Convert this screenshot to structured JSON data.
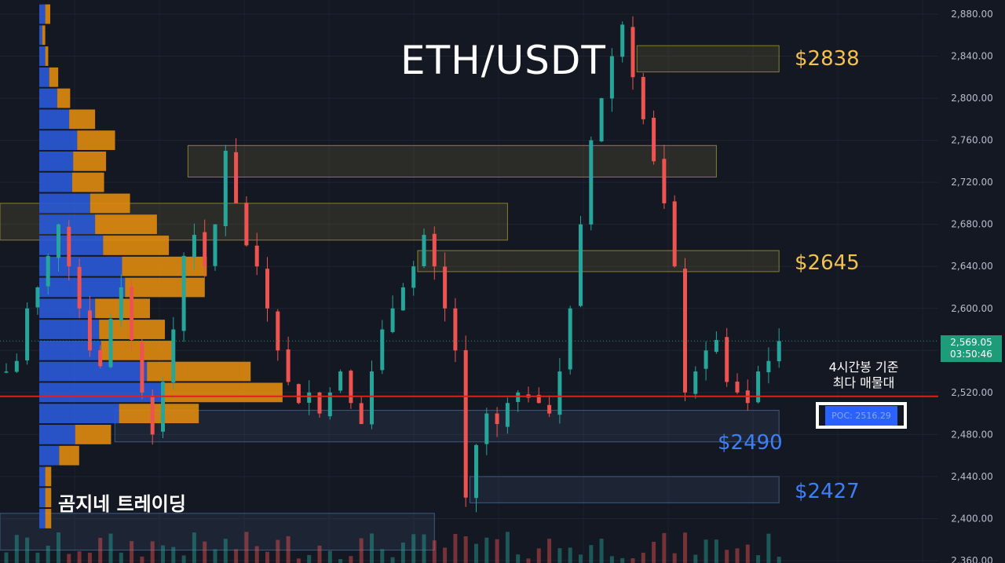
{
  "title": "ETH/USDT",
  "watermark": "곰지네 트레이딩",
  "price_labels": [
    {
      "text": "$2838",
      "color": "gold",
      "price": 2838
    },
    {
      "text": "$2645",
      "color": "gold",
      "price": 2645
    },
    {
      "text": "$2490",
      "color": "blue",
      "price": 2490
    },
    {
      "text": "$2427",
      "color": "blue",
      "price": 2427
    }
  ],
  "poc_note": {
    "line1": "4시간봉 기준",
    "line2": "최다 매물대"
  },
  "poc_label": "POC: 2516.29",
  "last_price": {
    "price": "2,569.05",
    "countdown": "03:50:46"
  },
  "colors": {
    "background": "#141823",
    "up": "#26a69a",
    "down": "#ef5350",
    "gold": "#f2c14e",
    "blue": "#3d7ff5",
    "poc_line": "#e01e1e"
  },
  "chart_data": {
    "type": "candlestick",
    "title": "ETH/USDT",
    "ylim": [
      2360,
      2890
    ],
    "y_ticks": [
      {
        "value": 2880,
        "label": "2,880.00"
      },
      {
        "value": 2840,
        "label": "2,840.00"
      },
      {
        "value": 2800,
        "label": "2,800.00"
      },
      {
        "value": 2760,
        "label": "2,760.00"
      },
      {
        "value": 2720,
        "label": "2,720.00"
      },
      {
        "value": 2680,
        "label": "2,680.00"
      },
      {
        "value": 2640,
        "label": "2,640.00"
      },
      {
        "value": 2600,
        "label": "2,600.00"
      },
      {
        "value": 2560,
        "label": "2,560.00"
      },
      {
        "value": 2520,
        "label": "2,520.00"
      },
      {
        "value": 2480,
        "label": "2,480.00"
      },
      {
        "value": 2440,
        "label": "2,440.00"
      },
      {
        "value": 2400,
        "label": "2,400.00"
      },
      {
        "value": 2360,
        "label": "2,360.00"
      }
    ],
    "poc": 2516.29,
    "last_price": 2569.05,
    "close_path": [
      2540,
      2550,
      2600,
      2620,
      2650,
      2680,
      2640,
      2600,
      2560,
      2545,
      2590,
      2620,
      2570,
      2520,
      2480,
      2530,
      2580,
      2650,
      2670,
      2640,
      2680,
      2750,
      2700,
      2660,
      2640,
      2600,
      2560,
      2530,
      2510,
      2520,
      2500,
      2520,
      2540,
      2510,
      2490,
      2540,
      2580,
      2600,
      2620,
      2640,
      2670,
      2640,
      2600,
      2560,
      2420,
      2470,
      2500,
      2490,
      2510,
      2520,
      2515,
      2510,
      2500,
      2540,
      2600,
      2680,
      2760,
      2800,
      2840,
      2870,
      2820,
      2780,
      2740,
      2700,
      2640,
      2520,
      2540,
      2560,
      2570,
      2530,
      2520,
      2510,
      2540,
      2550,
      2569
    ],
    "volume_profile": [
      {
        "price_low": 2870,
        "price_high": 2890,
        "up": 6,
        "down": 5
      },
      {
        "price_low": 2850,
        "price_high": 2870,
        "up": 3,
        "down": 3
      },
      {
        "price_low": 2830,
        "price_high": 2850,
        "up": 6,
        "down": 3
      },
      {
        "price_low": 2810,
        "price_high": 2830,
        "up": 10,
        "down": 9
      },
      {
        "price_low": 2790,
        "price_high": 2810,
        "up": 18,
        "down": 13
      },
      {
        "price_low": 2770,
        "price_high": 2790,
        "up": 30,
        "down": 26
      },
      {
        "price_low": 2750,
        "price_high": 2770,
        "up": 38,
        "down": 38
      },
      {
        "price_low": 2730,
        "price_high": 2750,
        "up": 34,
        "down": 33
      },
      {
        "price_low": 2710,
        "price_high": 2730,
        "up": 33,
        "down": 32
      },
      {
        "price_low": 2690,
        "price_high": 2710,
        "up": 51,
        "down": 40
      },
      {
        "price_low": 2670,
        "price_high": 2690,
        "up": 56,
        "down": 62
      },
      {
        "price_low": 2650,
        "price_high": 2670,
        "up": 64,
        "down": 66
      },
      {
        "price_low": 2630,
        "price_high": 2650,
        "up": 83,
        "down": 85
      },
      {
        "price_low": 2610,
        "price_high": 2630,
        "up": 86,
        "down": 80
      },
      {
        "price_low": 2590,
        "price_high": 2610,
        "up": 56,
        "down": 55
      },
      {
        "price_low": 2570,
        "price_high": 2590,
        "up": 60,
        "down": 66
      },
      {
        "price_low": 2550,
        "price_high": 2570,
        "up": 62,
        "down": 72
      },
      {
        "price_low": 2530,
        "price_high": 2550,
        "up": 108,
        "down": 104
      },
      {
        "price_low": 2510,
        "price_high": 2530,
        "up": 124,
        "down": 120
      },
      {
        "price_low": 2490,
        "price_high": 2510,
        "up": 80,
        "down": 80
      },
      {
        "price_low": 2470,
        "price_high": 2490,
        "up": 36,
        "down": 36
      },
      {
        "price_low": 2450,
        "price_high": 2470,
        "up": 20,
        "down": 20
      },
      {
        "price_low": 2430,
        "price_high": 2450,
        "up": 6,
        "down": 6
      },
      {
        "price_low": 2410,
        "price_high": 2430,
        "up": 6,
        "down": 6
      },
      {
        "price_low": 2390,
        "price_high": 2410,
        "up": 6,
        "down": 6
      }
    ],
    "zones": [
      {
        "kind": "gold",
        "price_low": 2825,
        "price_high": 2850,
        "start_index": 61,
        "end_index": 74
      },
      {
        "kind": "gold",
        "price_low": 2725,
        "price_high": 2755,
        "start_index": 18,
        "end_index": 68
      },
      {
        "kind": "gold",
        "price_low": 2665,
        "price_high": 2700,
        "start_index": 0,
        "end_index": 48
      },
      {
        "kind": "gold",
        "price_low": 2635,
        "price_high": 2655,
        "start_index": 40,
        "end_index": 74
      },
      {
        "kind": "blue",
        "price_low": 2473,
        "price_high": 2503,
        "start_index": 11,
        "end_index": 74
      },
      {
        "kind": "blue",
        "price_low": 2415,
        "price_high": 2440,
        "start_index": 45,
        "end_index": 74
      },
      {
        "kind": "blue",
        "price_low": 2370,
        "price_high": 2405,
        "start_index": 0,
        "end_index": 41
      }
    ]
  }
}
